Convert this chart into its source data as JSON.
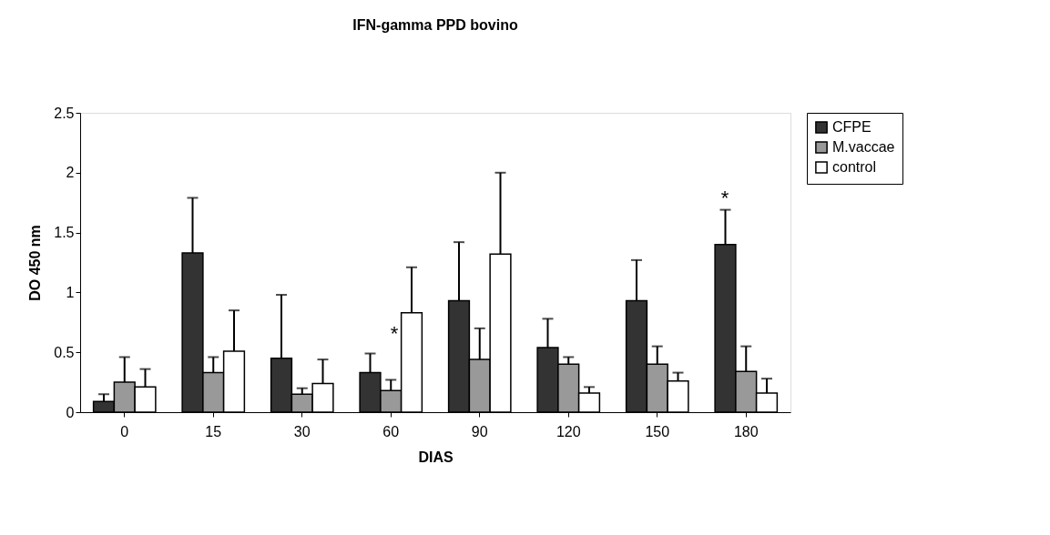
{
  "chart_data": {
    "type": "bar",
    "title": "IFN-gamma PPD bovino",
    "xlabel": "DIAS",
    "ylabel": "DO 450 nm",
    "categories": [
      "0",
      "15",
      "30",
      "60",
      "90",
      "120",
      "150",
      "180"
    ],
    "series": [
      {
        "name": "CFPE",
        "color": "#333333",
        "values": [
          0.09,
          1.33,
          0.45,
          0.33,
          0.93,
          0.54,
          0.93,
          1.4
        ],
        "errors": [
          [
            0.09,
            0.15
          ],
          [
            1.33,
            1.79
          ],
          [
            0.45,
            0.98
          ],
          [
            0.33,
            0.49
          ],
          [
            0.93,
            1.42
          ],
          [
            0.54,
            0.78
          ],
          [
            0.93,
            1.27
          ],
          [
            1.4,
            1.69
          ]
        ]
      },
      {
        "name": "M.vaccae",
        "color": "#999999",
        "values": [
          0.25,
          0.33,
          0.15,
          0.18,
          0.44,
          0.4,
          0.4,
          0.34
        ],
        "errors": [
          [
            0.25,
            0.46
          ],
          [
            0.33,
            0.46
          ],
          [
            0.15,
            0.2
          ],
          [
            0.18,
            0.27
          ],
          [
            0.44,
            0.7
          ],
          [
            0.4,
            0.46
          ],
          [
            0.4,
            0.55
          ],
          [
            0.34,
            0.55
          ]
        ]
      },
      {
        "name": "control",
        "color": "#ffffff",
        "values": [
          0.21,
          0.51,
          0.24,
          0.83,
          1.32,
          0.16,
          0.26,
          0.16
        ],
        "errors": [
          [
            0.21,
            0.36
          ],
          [
            0.51,
            0.85
          ],
          [
            0.24,
            0.44
          ],
          [
            0.83,
            1.21
          ],
          [
            1.32,
            2.0
          ],
          [
            0.16,
            0.21
          ],
          [
            0.26,
            0.33
          ],
          [
            0.16,
            0.28
          ]
        ]
      }
    ],
    "annotations": [
      "*",
      "*"
    ],
    "ylim": [
      0,
      2.5
    ],
    "yticks": [
      0,
      0.5,
      1,
      1.5,
      2,
      2.5
    ],
    "grid": false,
    "legend": "right"
  }
}
